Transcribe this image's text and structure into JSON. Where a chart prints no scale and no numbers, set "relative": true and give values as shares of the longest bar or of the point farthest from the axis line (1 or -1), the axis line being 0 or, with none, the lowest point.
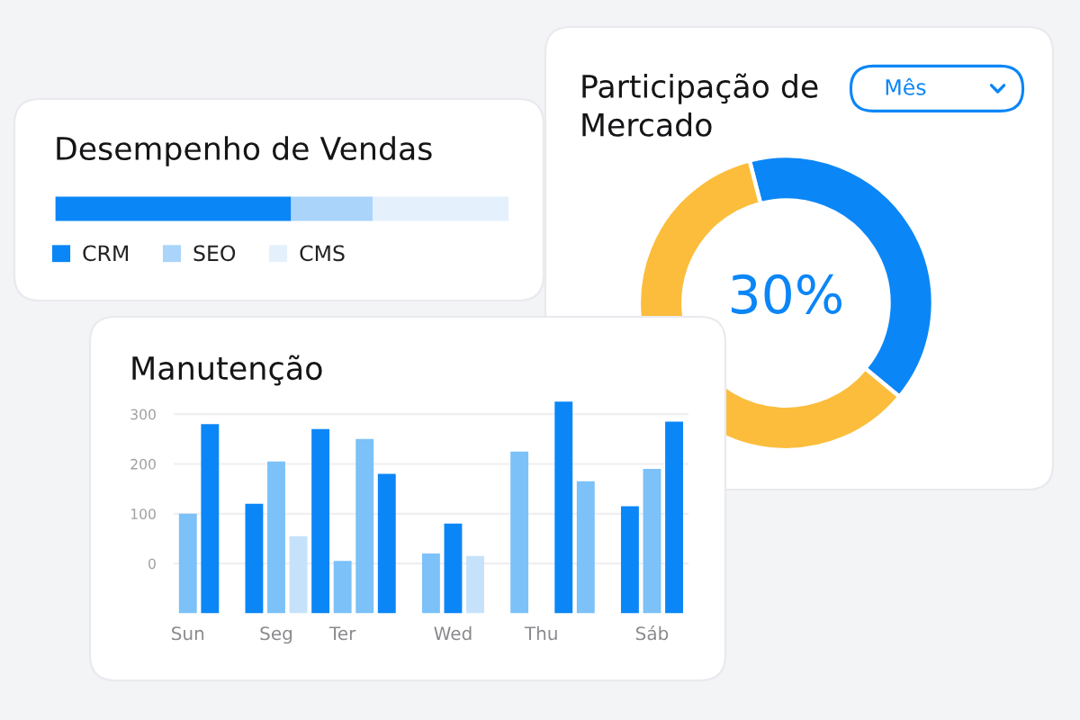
{
  "chart_data": [
    {
      "type": "bar",
      "title": "Desempenho de Vendas",
      "orientation": "horizontal",
      "stacked": true,
      "relative": true,
      "categories": [
        null
      ],
      "series": [
        {
          "name": "CRM",
          "color": "#0b86f7",
          "values": [
            0.52
          ]
        },
        {
          "name": "SEO",
          "color": "#aad4fa",
          "values": [
            0.18
          ]
        },
        {
          "name": "CMS",
          "color": "#e4f1fd",
          "values": [
            0.3
          ]
        }
      ],
      "legend": "bottom left"
    },
    {
      "type": "donut",
      "title": "Participação de\nMercado",
      "categories": [
        null,
        null
      ],
      "values": [
        40,
        60
      ],
      "colors": [
        "#0b86f7",
        "#fbbd3b"
      ],
      "annotations": [
        "30%",
        "Mês"
      ]
    },
    {
      "type": "bar",
      "title": "Manutenção",
      "categories": [
        "Sun",
        null,
        null,
        null,
        "Seg",
        null,
        null,
        "Ter",
        null,
        null,
        null,
        null,
        "Wed",
        null,
        null,
        null,
        "Thu",
        null,
        null,
        null,
        null,
        "Sáb",
        null
      ],
      "values": [
        200,
        380,
        null,
        220,
        305,
        155,
        370,
        105,
        350,
        280,
        null,
        120,
        180,
        115,
        null,
        325,
        null,
        425,
        265,
        null,
        215,
        290,
        385
      ],
      "base": [
        -100,
        -100,
        null,
        -100,
        -100,
        -100,
        -100,
        -100,
        -100,
        -100,
        null,
        -100,
        -100,
        -100,
        null,
        -100,
        null,
        -100,
        -100,
        null,
        -100,
        -100,
        -100
      ],
      "colors": [
        "#7cc1f8",
        "#0b86f7",
        null,
        "#0b86f7",
        "#7cc1f8",
        "#c6e2fb",
        "#0b86f7",
        "#7cc1f8",
        "#7cc1f8",
        "#0b86f7",
        null,
        "#7cc1f8",
        "#0b86f7",
        "#c6e2fb",
        null,
        "#7cc1f8",
        null,
        "#0b86f7",
        "#7cc1f8",
        null,
        "#0b86f7",
        "#7cc1f8",
        "#0b86f7"
      ],
      "ylim": [
        -100,
        330
      ],
      "yticks": [
        0,
        100,
        200,
        300
      ],
      "grid": "y"
    }
  ]
}
